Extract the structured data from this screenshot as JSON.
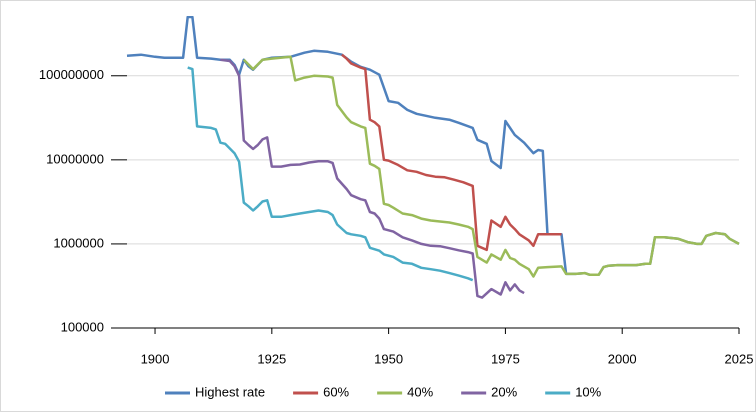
{
  "chart_data": {
    "type": "line",
    "log_scale": true,
    "grid": true,
    "legend": "bottom",
    "xlim": [
      1894,
      2025
    ],
    "xticks": [
      1900,
      1925,
      1950,
      1975,
      2000,
      2025
    ],
    "ylim": [
      100000,
      500000000
    ],
    "yticks": [
      100000,
      1000000,
      10000000,
      100000000
    ],
    "series": [
      {
        "name": "Highest rate",
        "color": "#4f81bd",
        "x": [
          1894,
          1897,
          1900,
          1902,
          1906,
          1907,
          1908,
          1909,
          1912,
          1914,
          1916,
          1917,
          1918,
          1919,
          1920,
          1921,
          1923,
          1925,
          1929,
          1932,
          1934,
          1937,
          1940,
          1942,
          1944,
          1946,
          1948,
          1950,
          1952,
          1954,
          1956,
          1958,
          1960,
          1963,
          1965,
          1968,
          1969,
          1971,
          1972,
          1974,
          1975,
          1977,
          1979,
          1981,
          1982,
          1983,
          1984,
          1987,
          1988,
          1990,
          1992,
          1993,
          1995,
          1996,
          1997,
          1999,
          2003,
          2005,
          2006,
          2007,
          2009,
          2012,
          2014,
          2016,
          2017,
          2018,
          2020,
          2022,
          2023,
          2025
        ],
        "values": [
          173000000,
          178000000,
          168000000,
          164000000,
          164000000,
          500000000,
          500000000,
          164000000,
          160000000,
          155000000,
          155000000,
          135000000,
          103000000,
          155000000,
          130000000,
          118000000,
          155000000,
          164000000,
          168000000,
          188000000,
          198000000,
          193000000,
          178000000,
          147000000,
          128000000,
          118000000,
          103000000,
          50000000,
          47700000,
          39300000,
          35300000,
          33400000,
          31600000,
          30000000,
          27600000,
          24000000,
          17300000,
          15500000,
          9700000,
          8000000,
          29000000,
          19800000,
          16000000,
          12000000,
          13100000,
          12800000,
          1300000,
          1300000,
          440000,
          440000,
          450000,
          430000,
          430000,
          530000,
          550000,
          560000,
          560000,
          580000,
          580000,
          1200000,
          1200000,
          1150000,
          1050000,
          1000000,
          1000000,
          1250000,
          1350000,
          1300000,
          1150000,
          1000000
        ]
      },
      {
        "name": "60%",
        "color": "#c0504d",
        "x": [
          1940,
          1941,
          1942,
          1944,
          1945,
          1946,
          1947,
          1948,
          1949,
          1950,
          1952,
          1954,
          1956,
          1958,
          1960,
          1962,
          1964,
          1966,
          1968,
          1969,
          1971,
          1972,
          1974,
          1975,
          1976,
          1977,
          1978,
          1980,
          1981,
          1982,
          1987
        ],
        "values": [
          178000000,
          160000000,
          140000000,
          125000000,
          120000000,
          30000000,
          28000000,
          25000000,
          10000000,
          9800000,
          8700000,
          7500000,
          7200000,
          6600000,
          6300000,
          6200000,
          5800000,
          5400000,
          4900000,
          950000,
          850000,
          1900000,
          1600000,
          2100000,
          1700000,
          1500000,
          1300000,
          1100000,
          950000,
          1300000,
          1300000
        ]
      },
      {
        "name": "40%",
        "color": "#9bbb59",
        "x": [
          1919,
          1921,
          1923,
          1925,
          1929,
          1930,
          1932,
          1934,
          1937,
          1938,
          1939,
          1941,
          1942,
          1944,
          1945,
          1946,
          1947,
          1948,
          1949,
          1950,
          1951,
          1953,
          1955,
          1957,
          1959,
          1961,
          1963,
          1965,
          1967,
          1968,
          1969,
          1971,
          1972,
          1974,
          1975,
          1976,
          1977,
          1978,
          1980,
          1981,
          1982,
          1984,
          1987,
          1988,
          1990,
          1992,
          1993,
          1995,
          1996,
          1997,
          1999,
          2003,
          2005,
          2006,
          2007,
          2009,
          2012,
          2014,
          2016,
          2017,
          2018,
          2020,
          2022,
          2023,
          2025
        ],
        "values": [
          155000000,
          120000000,
          155000000,
          160000000,
          168000000,
          88000000,
          95000000,
          100000000,
          98000000,
          95000000,
          45000000,
          32000000,
          28000000,
          25000000,
          24000000,
          9000000,
          8500000,
          7800000,
          3000000,
          2900000,
          2700000,
          2300000,
          2200000,
          2000000,
          1900000,
          1850000,
          1800000,
          1700000,
          1600000,
          1500000,
          700000,
          600000,
          750000,
          650000,
          850000,
          680000,
          650000,
          580000,
          500000,
          410000,
          520000,
          530000,
          540000,
          440000,
          440000,
          450000,
          430000,
          430000,
          530000,
          550000,
          560000,
          560000,
          580000,
          580000,
          1200000,
          1200000,
          1150000,
          1050000,
          1000000,
          1000000,
          1250000,
          1350000,
          1300000,
          1150000,
          1000000
        ]
      },
      {
        "name": "20%",
        "color": "#8064a2",
        "x": [
          1914,
          1916,
          1917,
          1918,
          1919,
          1920,
          1921,
          1922,
          1923,
          1924,
          1925,
          1927,
          1929,
          1931,
          1933,
          1935,
          1937,
          1938,
          1939,
          1941,
          1942,
          1944,
          1945,
          1946,
          1947,
          1948,
          1949,
          1951,
          1953,
          1955,
          1957,
          1959,
          1961,
          1963,
          1965,
          1967,
          1968,
          1969,
          1970,
          1972,
          1974,
          1975,
          1976,
          1977,
          1978,
          1979
        ],
        "values": [
          155000000,
          150000000,
          130000000,
          100000000,
          17000000,
          15000000,
          13500000,
          15000000,
          17500000,
          18500000,
          8300000,
          8300000,
          8700000,
          8800000,
          9300000,
          9600000,
          9600000,
          9200000,
          6000000,
          4500000,
          3800000,
          3400000,
          3300000,
          2400000,
          2300000,
          2000000,
          1500000,
          1400000,
          1200000,
          1100000,
          1000000,
          950000,
          940000,
          890000,
          840000,
          800000,
          770000,
          240000,
          230000,
          290000,
          250000,
          350000,
          280000,
          330000,
          280000,
          260000
        ]
      },
      {
        "name": "10%",
        "color": "#4bacc6",
        "x": [
          1907,
          1908,
          1909,
          1912,
          1913,
          1914,
          1915,
          1917,
          1918,
          1919,
          1920,
          1921,
          1922,
          1923,
          1924,
          1925,
          1927,
          1929,
          1931,
          1933,
          1935,
          1937,
          1938,
          1939,
          1941,
          1942,
          1944,
          1945,
          1946,
          1948,
          1949,
          1951,
          1953,
          1955,
          1957,
          1959,
          1961,
          1963,
          1965,
          1967,
          1968
        ],
        "values": [
          125000000,
          120000000,
          25000000,
          24000000,
          23000000,
          16000000,
          15500000,
          12000000,
          9500000,
          3100000,
          2800000,
          2500000,
          2800000,
          3200000,
          3300000,
          2100000,
          2100000,
          2200000,
          2300000,
          2400000,
          2500000,
          2400000,
          2200000,
          1700000,
          1350000,
          1300000,
          1250000,
          1200000,
          900000,
          830000,
          750000,
          700000,
          600000,
          580000,
          520000,
          500000,
          480000,
          450000,
          420000,
          390000,
          370000
        ]
      }
    ]
  }
}
